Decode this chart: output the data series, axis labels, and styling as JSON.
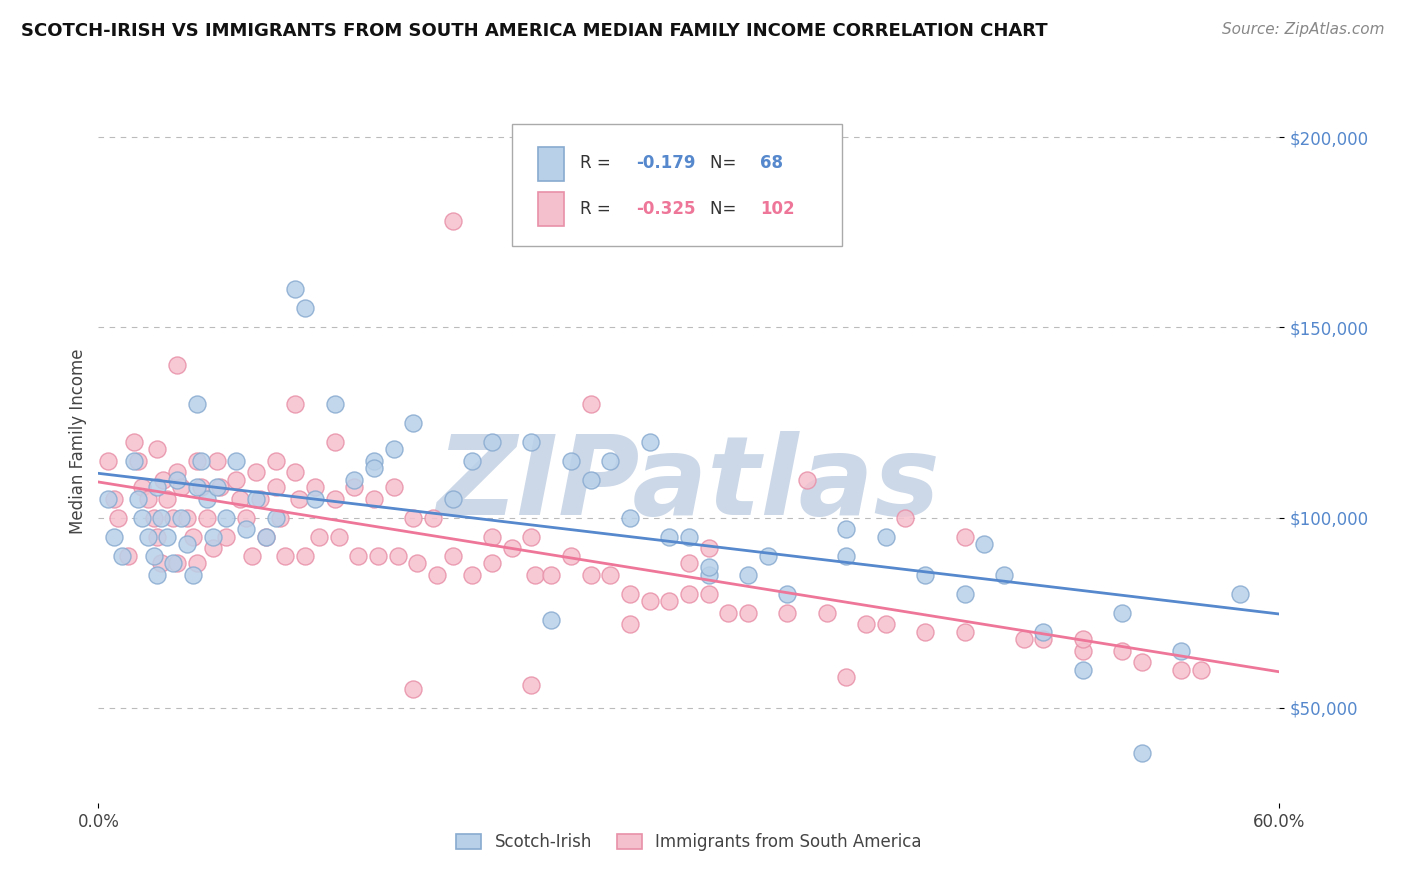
{
  "title": "SCOTCH-IRISH VS IMMIGRANTS FROM SOUTH AMERICA MEDIAN FAMILY INCOME CORRELATION CHART",
  "source": "Source: ZipAtlas.com",
  "ylabel": "Median Family Income",
  "xlim": [
    0.0,
    0.6
  ],
  "ylim": [
    25000,
    215000
  ],
  "yticks": [
    50000,
    100000,
    150000,
    200000
  ],
  "yticklabels": [
    "$50,000",
    "$100,000",
    "$150,000",
    "$200,000"
  ],
  "blue_label": "Scotch-Irish",
  "pink_label": "Immigrants from South America",
  "blue_R": "-0.179",
  "blue_N": "68",
  "pink_R": "-0.325",
  "pink_N": "102",
  "blue_color": "#b8d0e8",
  "blue_edge": "#88aad0",
  "pink_color": "#f5c0ce",
  "pink_edge": "#e890a8",
  "blue_line_color": "#5588cc",
  "pink_line_color": "#ee7799",
  "ytick_color": "#5588cc",
  "watermark": "ZIPatlas",
  "watermark_color": "#ccd8e8",
  "background": "#ffffff",
  "grid_color": "#bbbbbb",
  "blue_x": [
    0.005,
    0.008,
    0.012,
    0.018,
    0.02,
    0.022,
    0.025,
    0.028,
    0.03,
    0.03,
    0.032,
    0.035,
    0.038,
    0.04,
    0.042,
    0.045,
    0.048,
    0.05,
    0.052,
    0.055,
    0.058,
    0.06,
    0.065,
    0.07,
    0.075,
    0.08,
    0.085,
    0.09,
    0.1,
    0.105,
    0.11,
    0.12,
    0.13,
    0.14,
    0.15,
    0.16,
    0.18,
    0.19,
    0.2,
    0.22,
    0.24,
    0.25,
    0.26,
    0.27,
    0.29,
    0.3,
    0.31,
    0.33,
    0.34,
    0.35,
    0.38,
    0.4,
    0.42,
    0.44,
    0.46,
    0.48,
    0.5,
    0.52,
    0.55,
    0.58,
    0.05,
    0.14,
    0.28,
    0.38,
    0.23,
    0.31,
    0.45,
    0.53
  ],
  "blue_y": [
    105000,
    95000,
    90000,
    115000,
    105000,
    100000,
    95000,
    90000,
    85000,
    108000,
    100000,
    95000,
    88000,
    110000,
    100000,
    93000,
    85000,
    130000,
    115000,
    105000,
    95000,
    108000,
    100000,
    115000,
    97000,
    105000,
    95000,
    100000,
    160000,
    155000,
    105000,
    130000,
    110000,
    115000,
    118000,
    125000,
    105000,
    115000,
    120000,
    120000,
    115000,
    110000,
    115000,
    100000,
    95000,
    95000,
    85000,
    85000,
    90000,
    80000,
    90000,
    95000,
    85000,
    80000,
    85000,
    70000,
    60000,
    75000,
    65000,
    80000,
    108000,
    113000,
    120000,
    97000,
    73000,
    87000,
    93000,
    38000
  ],
  "pink_x": [
    0.005,
    0.008,
    0.01,
    0.015,
    0.018,
    0.02,
    0.022,
    0.025,
    0.028,
    0.03,
    0.032,
    0.03,
    0.033,
    0.035,
    0.038,
    0.04,
    0.04,
    0.042,
    0.045,
    0.048,
    0.05,
    0.05,
    0.052,
    0.055,
    0.058,
    0.06,
    0.062,
    0.065,
    0.07,
    0.072,
    0.075,
    0.078,
    0.08,
    0.082,
    0.085,
    0.09,
    0.092,
    0.095,
    0.1,
    0.102,
    0.105,
    0.11,
    0.112,
    0.12,
    0.122,
    0.13,
    0.132,
    0.14,
    0.142,
    0.15,
    0.152,
    0.16,
    0.162,
    0.17,
    0.172,
    0.18,
    0.19,
    0.2,
    0.21,
    0.22,
    0.222,
    0.23,
    0.24,
    0.25,
    0.26,
    0.27,
    0.28,
    0.29,
    0.3,
    0.31,
    0.32,
    0.33,
    0.35,
    0.37,
    0.39,
    0.4,
    0.42,
    0.44,
    0.47,
    0.5,
    0.53,
    0.55,
    0.1,
    0.18,
    0.12,
    0.09,
    0.04,
    0.25,
    0.36,
    0.41,
    0.2,
    0.31,
    0.3,
    0.44,
    0.27,
    0.48,
    0.52,
    0.56,
    0.5,
    0.38,
    0.22,
    0.16
  ],
  "pink_y": [
    115000,
    105000,
    100000,
    90000,
    120000,
    115000,
    108000,
    105000,
    100000,
    95000,
    88000,
    118000,
    110000,
    105000,
    100000,
    88000,
    112000,
    108000,
    100000,
    95000,
    88000,
    115000,
    108000,
    100000,
    92000,
    115000,
    108000,
    95000,
    110000,
    105000,
    100000,
    90000,
    112000,
    105000,
    95000,
    108000,
    100000,
    90000,
    112000,
    105000,
    90000,
    108000,
    95000,
    105000,
    95000,
    108000,
    90000,
    105000,
    90000,
    108000,
    90000,
    100000,
    88000,
    100000,
    85000,
    90000,
    85000,
    88000,
    92000,
    95000,
    85000,
    85000,
    90000,
    85000,
    85000,
    80000,
    78000,
    78000,
    80000,
    80000,
    75000,
    75000,
    75000,
    75000,
    72000,
    72000,
    70000,
    70000,
    68000,
    65000,
    62000,
    60000,
    130000,
    178000,
    120000,
    115000,
    140000,
    130000,
    110000,
    100000,
    95000,
    92000,
    88000,
    95000,
    72000,
    68000,
    65000,
    60000,
    68000,
    58000,
    56000,
    55000
  ]
}
